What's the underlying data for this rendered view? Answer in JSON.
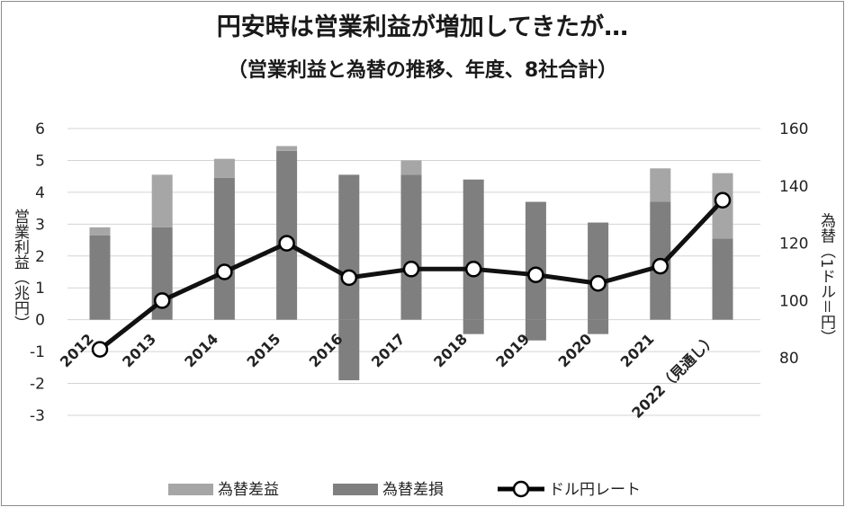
{
  "title": "円安時は営業利益が増加してきたが…",
  "subtitle": "（営業利益と為替の推移、年度、8社合計）",
  "chart_data": {
    "type": "bar",
    "title": "円安時は営業利益が増加してきたが…",
    "subtitle": "（営業利益と為替の推移、年度、8社合計）",
    "categories": [
      "2012",
      "2013",
      "2014",
      "2015",
      "2016",
      "2017",
      "2018",
      "2019",
      "2020",
      "2021",
      "2022（見通し）"
    ],
    "ylabel": "営業利益（兆円）",
    "y2label": "為替（1ドル＝円）",
    "ylim": [
      -3,
      6
    ],
    "yticks": [
      -3,
      -2,
      -1,
      0,
      1,
      2,
      3,
      4,
      5,
      6
    ],
    "y2lim": [
      60,
      160
    ],
    "y2ticks": [
      80,
      100,
      120,
      140,
      160
    ],
    "grid": true,
    "legend_position": "bottom",
    "series": [
      {
        "name": "為替差益",
        "kind": "bar",
        "color": "#a6a6a6",
        "values": [
          0.25,
          1.65,
          0.6,
          0.15,
          0,
          0.45,
          0,
          0,
          0,
          1.05,
          2.05
        ]
      },
      {
        "name": "為替差損",
        "kind": "bar",
        "color": "#7f7f7f",
        "values": [
          2.65,
          2.9,
          4.45,
          5.3,
          4.55,
          4.55,
          4.4,
          3.7,
          3.05,
          3.7,
          2.55
        ],
        "negative_values": [
          0,
          0,
          0,
          0,
          -1.9,
          0,
          -0.45,
          -0.65,
          -0.45,
          0,
          0
        ]
      },
      {
        "name": "ドル円レート",
        "kind": "line",
        "axis": "right",
        "color": "#111111",
        "values": [
          83,
          100,
          110,
          120,
          108,
          111,
          111,
          109,
          106,
          112,
          135
        ]
      }
    ]
  }
}
